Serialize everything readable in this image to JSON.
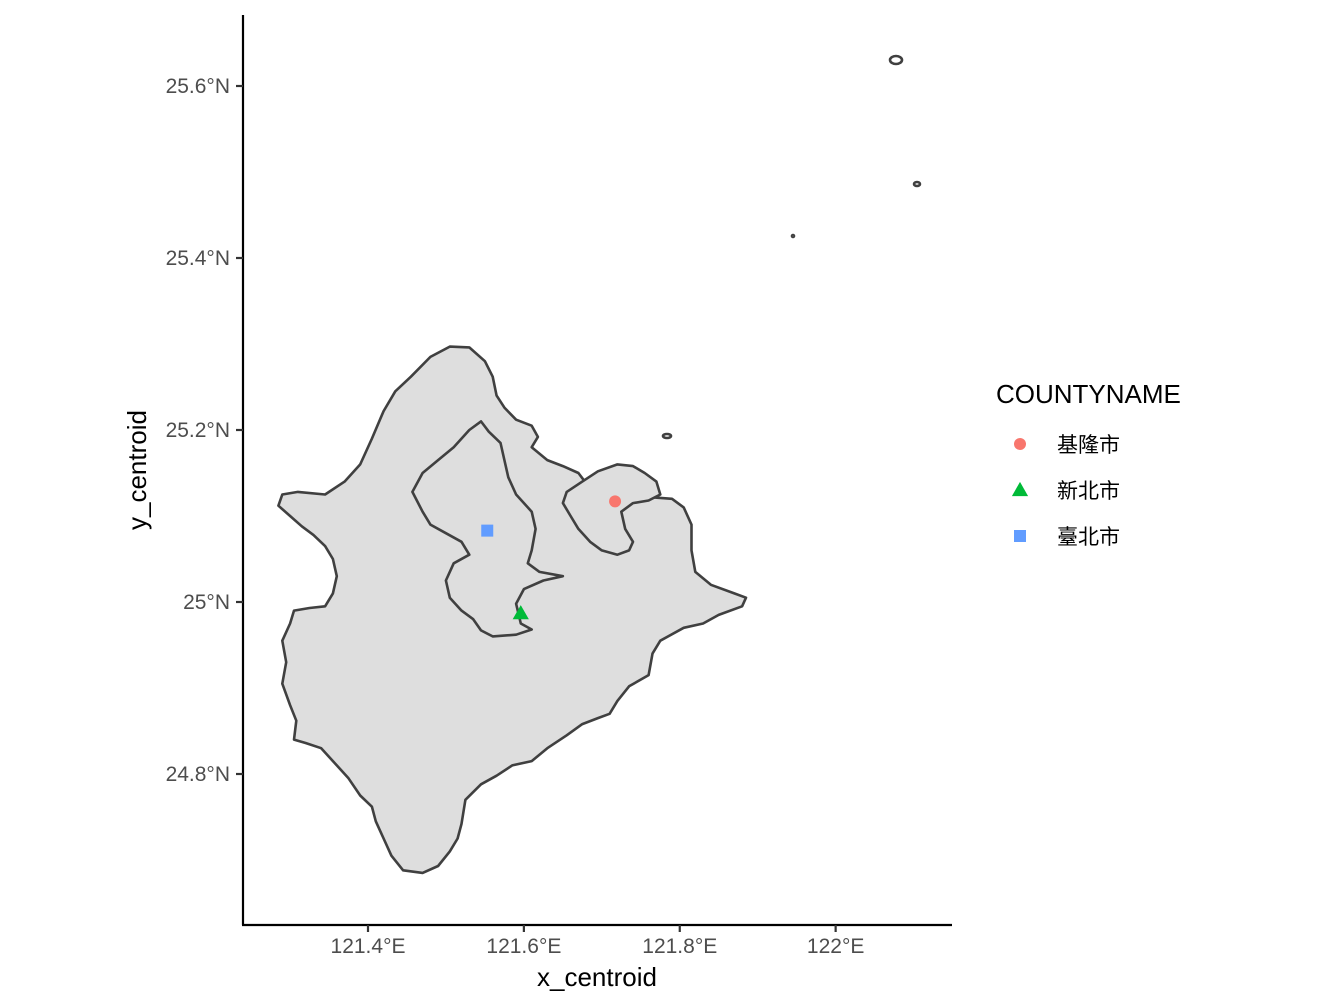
{
  "chart_data": {
    "type": "map",
    "xlabel": "x_centroid",
    "ylabel": "y_centroid",
    "xlim": [
      121.24,
      122.14
    ],
    "ylim": [
      24.63,
      25.68
    ],
    "x_ticks": [
      {
        "value": 121.4,
        "label": "121.4°E"
      },
      {
        "value": 121.6,
        "label": "121.6°E"
      },
      {
        "value": 121.8,
        "label": "121.8°E"
      },
      {
        "value": 122.0,
        "label": "122°E"
      }
    ],
    "y_ticks": [
      {
        "value": 24.8,
        "label": "24.8°N"
      },
      {
        "value": 25.0,
        "label": "25°N"
      },
      {
        "value": 25.2,
        "label": "25.2°N"
      },
      {
        "value": 25.4,
        "label": "25.4°N"
      },
      {
        "value": 25.6,
        "label": "25.6°N"
      }
    ],
    "grid": false,
    "legend": {
      "title": "COUNTYNAME",
      "placement": "right"
    },
    "series": [
      {
        "name": "基隆市",
        "shape": "circle",
        "color": "#F8766D",
        "x": 121.717,
        "y": 25.117
      },
      {
        "name": "新北市",
        "shape": "triangle",
        "color": "#00BA38",
        "x": 121.596,
        "y": 24.987
      },
      {
        "name": "臺北市",
        "shape": "square",
        "color": "#619CFF",
        "x": 121.553,
        "y": 25.083
      }
    ],
    "polygons": {
      "fill": "#DEDEDE",
      "stroke": "#404040",
      "new_taipei": [
        [
          121.29,
          25.125
        ],
        [
          121.31,
          25.128
        ],
        [
          121.345,
          25.125
        ],
        [
          121.37,
          25.14
        ],
        [
          121.39,
          25.16
        ],
        [
          121.405,
          25.19
        ],
        [
          121.42,
          25.222
        ],
        [
          121.435,
          25.245
        ],
        [
          121.455,
          25.262
        ],
        [
          121.48,
          25.285
        ],
        [
          121.505,
          25.297
        ],
        [
          121.53,
          25.296
        ],
        [
          121.55,
          25.28
        ],
        [
          121.56,
          25.262
        ],
        [
          121.565,
          25.24
        ],
        [
          121.575,
          25.226
        ],
        [
          121.59,
          25.212
        ],
        [
          121.61,
          25.205
        ],
        [
          121.618,
          25.192
        ],
        [
          121.61,
          25.18
        ],
        [
          121.63,
          25.165
        ],
        [
          121.65,
          25.158
        ],
        [
          121.67,
          25.15
        ],
        [
          121.68,
          25.138
        ],
        [
          121.695,
          25.13
        ],
        [
          121.72,
          25.125
        ],
        [
          121.74,
          25.125
        ],
        [
          121.76,
          25.122
        ],
        [
          121.79,
          25.12
        ],
        [
          121.805,
          25.11
        ],
        [
          121.815,
          25.09
        ],
        [
          121.815,
          25.06
        ],
        [
          121.82,
          25.035
        ],
        [
          121.84,
          25.02
        ],
        [
          121.87,
          25.01
        ],
        [
          121.885,
          25.005
        ],
        [
          121.88,
          24.995
        ],
        [
          121.85,
          24.985
        ],
        [
          121.83,
          24.975
        ],
        [
          121.805,
          24.97
        ],
        [
          121.775,
          24.955
        ],
        [
          121.765,
          24.94
        ],
        [
          121.76,
          24.915
        ],
        [
          121.735,
          24.902
        ],
        [
          121.72,
          24.885
        ],
        [
          121.71,
          24.87
        ],
        [
          121.695,
          24.865
        ],
        [
          121.675,
          24.858
        ],
        [
          121.655,
          24.845
        ],
        [
          121.63,
          24.83
        ],
        [
          121.61,
          24.815
        ],
        [
          121.585,
          24.81
        ],
        [
          121.565,
          24.798
        ],
        [
          121.545,
          24.788
        ],
        [
          121.525,
          24.77
        ],
        [
          121.52,
          24.742
        ],
        [
          121.515,
          24.725
        ],
        [
          121.505,
          24.71
        ],
        [
          121.49,
          24.693
        ],
        [
          121.47,
          24.685
        ],
        [
          121.445,
          24.688
        ],
        [
          121.43,
          24.705
        ],
        [
          121.42,
          24.725
        ],
        [
          121.41,
          24.745
        ],
        [
          121.405,
          24.762
        ],
        [
          121.39,
          24.775
        ],
        [
          121.375,
          24.795
        ],
        [
          121.36,
          24.81
        ],
        [
          121.34,
          24.83
        ],
        [
          121.32,
          24.836
        ],
        [
          121.305,
          24.84
        ],
        [
          121.308,
          24.862
        ],
        [
          121.3,
          24.88
        ],
        [
          121.29,
          24.905
        ],
        [
          121.295,
          24.93
        ],
        [
          121.29,
          24.955
        ],
        [
          121.3,
          24.975
        ],
        [
          121.305,
          24.99
        ],
        [
          121.325,
          24.993
        ],
        [
          121.345,
          24.995
        ],
        [
          121.355,
          25.01
        ],
        [
          121.36,
          25.03
        ],
        [
          121.355,
          25.05
        ],
        [
          121.345,
          25.065
        ],
        [
          121.33,
          25.078
        ],
        [
          121.315,
          25.088
        ],
        [
          121.3,
          25.1
        ],
        [
          121.285,
          25.112
        ],
        [
          121.29,
          25.125
        ]
      ],
      "taipei": [
        [
          121.457,
          25.128
        ],
        [
          121.47,
          25.15
        ],
        [
          121.49,
          25.165
        ],
        [
          121.51,
          25.18
        ],
        [
          121.53,
          25.2
        ],
        [
          121.545,
          25.21
        ],
        [
          121.555,
          25.198
        ],
        [
          121.57,
          25.185
        ],
        [
          121.575,
          25.165
        ],
        [
          121.58,
          25.145
        ],
        [
          121.59,
          25.125
        ],
        [
          121.61,
          25.105
        ],
        [
          121.615,
          25.085
        ],
        [
          121.61,
          25.06
        ],
        [
          121.605,
          25.045
        ],
        [
          121.62,
          25.035
        ],
        [
          121.65,
          25.03
        ],
        [
          121.625,
          25.025
        ],
        [
          121.6,
          25.015
        ],
        [
          121.59,
          24.998
        ],
        [
          121.596,
          24.975
        ],
        [
          121.61,
          24.968
        ],
        [
          121.59,
          24.962
        ],
        [
          121.56,
          24.96
        ],
        [
          121.545,
          24.967
        ],
        [
          121.535,
          24.98
        ],
        [
          121.52,
          24.99
        ],
        [
          121.505,
          25.005
        ],
        [
          121.5,
          25.025
        ],
        [
          121.51,
          25.045
        ],
        [
          121.53,
          25.055
        ],
        [
          121.52,
          25.07
        ],
        [
          121.5,
          25.08
        ],
        [
          121.48,
          25.09
        ],
        [
          121.47,
          25.105
        ],
        [
          121.457,
          25.128
        ]
      ],
      "keelung": [
        [
          121.655,
          25.128
        ],
        [
          121.675,
          25.14
        ],
        [
          121.695,
          25.152
        ],
        [
          121.72,
          25.16
        ],
        [
          121.74,
          25.158
        ],
        [
          121.755,
          25.15
        ],
        [
          121.77,
          25.14
        ],
        [
          121.775,
          25.125
        ],
        [
          121.76,
          25.118
        ],
        [
          121.74,
          25.115
        ],
        [
          121.725,
          25.105
        ],
        [
          121.73,
          25.085
        ],
        [
          121.74,
          25.07
        ],
        [
          121.735,
          25.06
        ],
        [
          121.72,
          25.055
        ],
        [
          121.7,
          25.06
        ],
        [
          121.685,
          25.07
        ],
        [
          121.67,
          25.085
        ],
        [
          121.66,
          25.1
        ],
        [
          121.65,
          25.115
        ],
        [
          121.655,
          25.128
        ]
      ]
    }
  }
}
